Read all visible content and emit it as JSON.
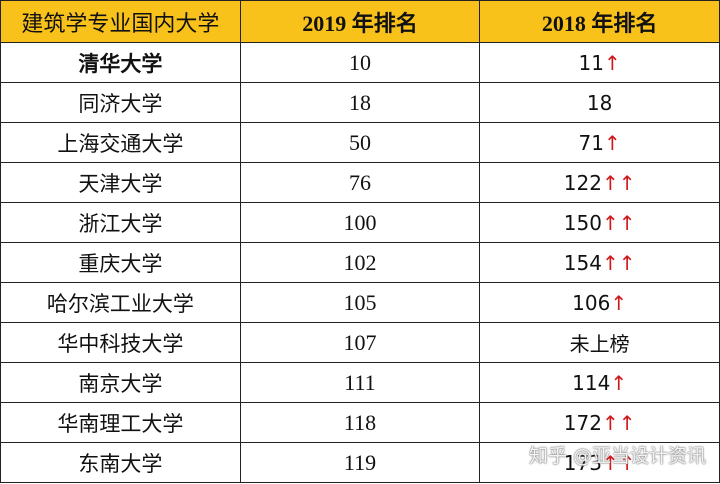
{
  "table": {
    "header": [
      "建筑学专业国内大学",
      "2019 年排名",
      "2018 年排名"
    ],
    "rows": [
      {
        "school": "清华大学",
        "rank_2019": 10,
        "rank_2018": 11,
        "trend": "↑"
      },
      {
        "school": "同济大学",
        "rank_2019": 18,
        "rank_2018": 18
      },
      {
        "school": "上海交通大学",
        "rank_2019": 50,
        "rank_2018": 71,
        "trend": "↑"
      },
      {
        "school": "天津大学",
        "rank_2019": 76,
        "rank_2018": 122,
        "trend": "↑↑"
      },
      {
        "school": "浙江大学",
        "rank_2019": 100,
        "rank_2018": 150,
        "trend": "↑↑"
      },
      {
        "school": "重庆大学",
        "rank_2019": 102,
        "rank_2018": 154,
        "trend": "↑↑"
      },
      {
        "school": "哈尔滨工业大学",
        "rank_2019": 105,
        "rank_2018": 106,
        "trend": "↑"
      },
      {
        "school": "华中科技大学",
        "rank_2019": 107,
        "rank_2018": "未上榜"
      },
      {
        "school": "南京大学",
        "rank_2019": 111,
        "rank_2018": 114,
        "trend": "↑"
      },
      {
        "school": "华南理工大学",
        "rank_2019": 118,
        "rank_2018": 172,
        "trend": "↑↑"
      },
      {
        "school": "东南大学",
        "rank_2019": 119,
        "rank_2018": 173,
        "trend": "↑↑"
      }
    ]
  },
  "watermark": "知乎 @亚当设计资讯"
}
